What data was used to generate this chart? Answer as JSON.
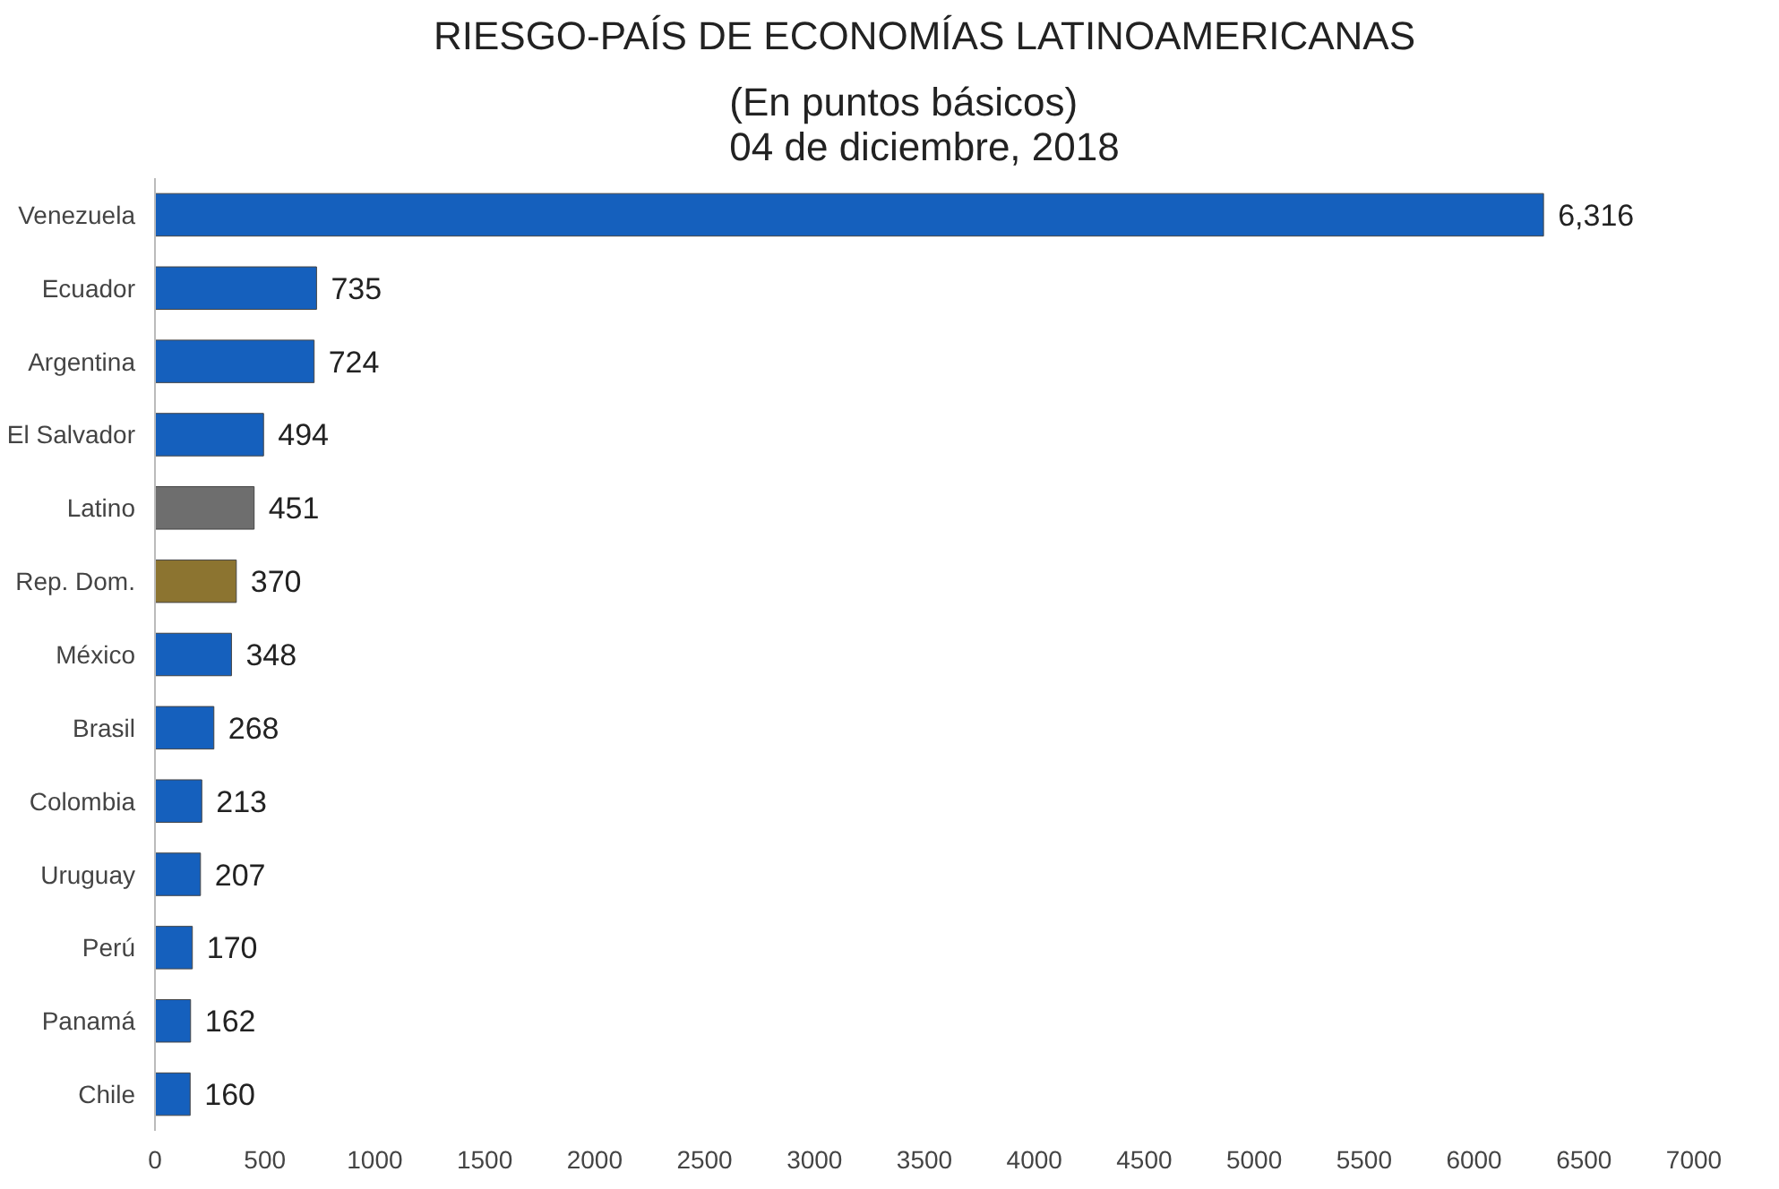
{
  "chart_data": {
    "type": "bar",
    "orientation": "horizontal",
    "title": "RIESGO-PAÍS DE ECONOMÍAS LATINOAMERICANAS",
    "subtitle": "(En puntos básicos)\n04 de diciembre, 2018",
    "categories": [
      "Venezuela",
      "Ecuador",
      "Argentina",
      "El Salvador",
      "Latino",
      "Rep. Dom.",
      "México",
      "Brasil",
      "Colombia",
      "Uruguay",
      "Perú",
      "Panamá",
      "Chile"
    ],
    "values": [
      6316,
      735,
      724,
      494,
      451,
      370,
      348,
      268,
      213,
      207,
      170,
      162,
      160
    ],
    "value_labels": [
      "6,316",
      "735",
      "724",
      "494",
      "451",
      "370",
      "348",
      "268",
      "213",
      "207",
      "170",
      "162",
      "160"
    ],
    "colors": [
      "#1560bd",
      "#1560bd",
      "#1560bd",
      "#1560bd",
      "#6e6e6e",
      "#8c7430",
      "#1560bd",
      "#1560bd",
      "#1560bd",
      "#1560bd",
      "#1560bd",
      "#1560bd",
      "#1560bd"
    ],
    "xlim": [
      0,
      7000
    ],
    "xticks": [
      0,
      500,
      1000,
      1500,
      2000,
      2500,
      3000,
      3500,
      4000,
      4500,
      5000,
      5500,
      6000,
      6500,
      7000
    ],
    "grid": false
  }
}
